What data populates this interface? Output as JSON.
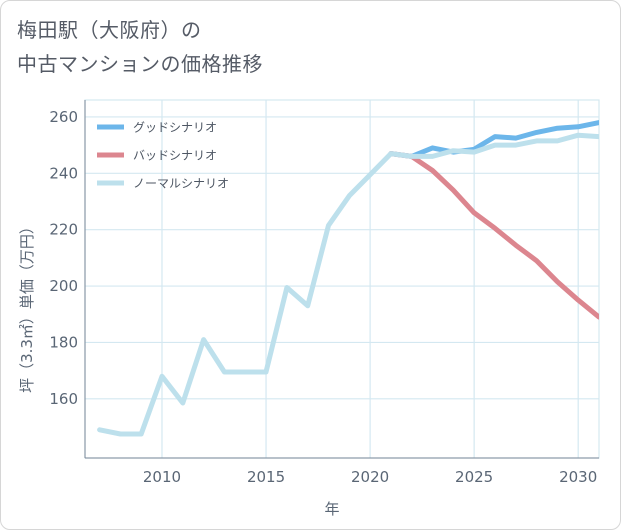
{
  "header": {
    "title_line1": "梅田駅（大阪府）の",
    "title_line2": "中古マンションの価格推移"
  },
  "chart_data": {
    "type": "line",
    "xlabel": "年",
    "ylabel": "坪（3.3㎡）単価（万円）",
    "xlim": [
      2006.3,
      2031
    ],
    "ylim": [
      139,
      266
    ],
    "xticks": [
      2010,
      2015,
      2020,
      2025,
      2030
    ],
    "yticks": [
      160,
      180,
      200,
      220,
      240,
      260
    ],
    "grid": true,
    "legend_position": "top-left",
    "series": [
      {
        "name": "グッドシナリオ",
        "color": "#6cb6ea",
        "x": [
          2021,
          2022,
          2023,
          2024,
          2025,
          2026,
          2027,
          2028,
          2029,
          2030,
          2031
        ],
        "y": [
          247,
          246,
          249,
          247.5,
          248.5,
          253,
          252.5,
          254.5,
          256,
          256.5,
          258
        ]
      },
      {
        "name": "バッドシナリオ",
        "color": "#dc868f",
        "x": [
          2021,
          2022,
          2023,
          2024,
          2025,
          2026,
          2027,
          2028,
          2029,
          2030,
          2031
        ],
        "y": [
          247,
          246,
          241,
          234,
          226,
          220.5,
          214.5,
          209,
          201.5,
          195,
          189
        ]
      },
      {
        "name": "ノーマルシナリオ",
        "color": "#bde0ec",
        "x": [
          2007,
          2008,
          2009,
          2010,
          2011,
          2012,
          2013,
          2014,
          2015,
          2016,
          2017,
          2018,
          2019,
          2020,
          2021,
          2022,
          2023,
          2024,
          2025,
          2026,
          2027,
          2028,
          2029,
          2030,
          2031
        ],
        "y": [
          149,
          147.5,
          147.5,
          168,
          158.5,
          181,
          169.5,
          169.5,
          169.5,
          199.5,
          193,
          221.5,
          232,
          239.5,
          247,
          246,
          246,
          248,
          247.5,
          250,
          250,
          251.5,
          251.5,
          253.5,
          253
        ]
      }
    ]
  }
}
